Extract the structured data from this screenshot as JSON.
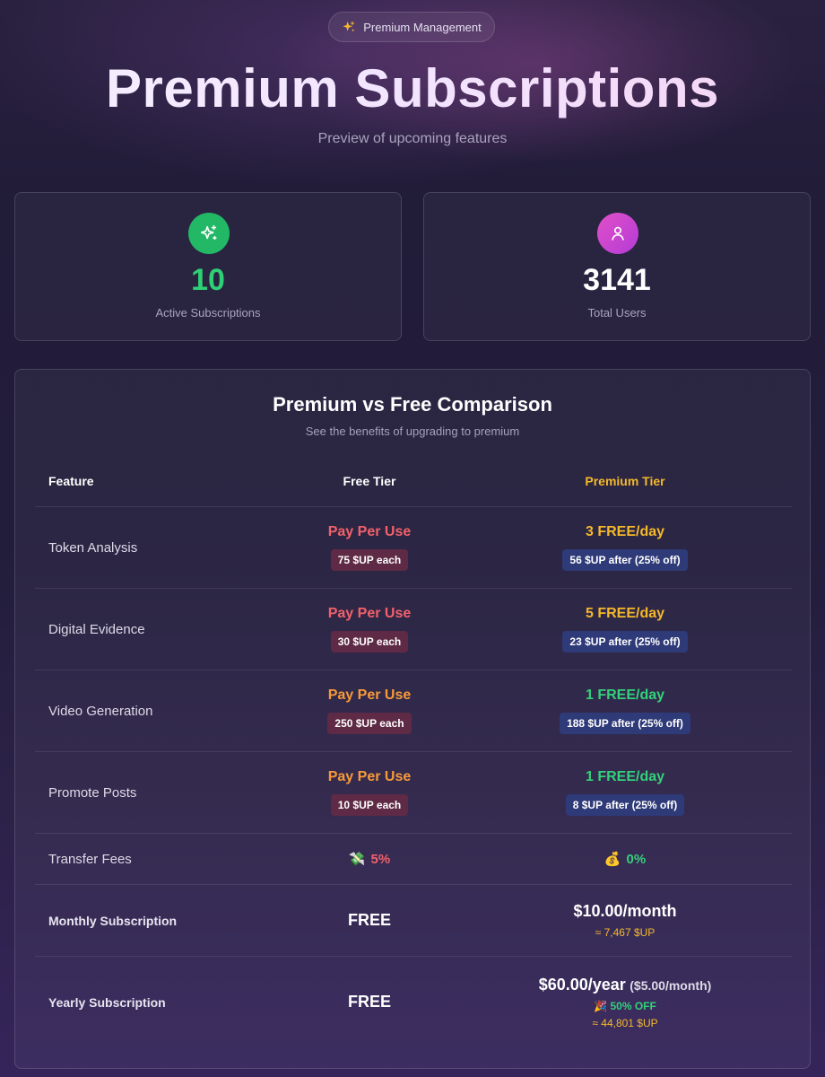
{
  "header": {
    "badge_label": "Premium Management",
    "title": "Premium Subscriptions",
    "subtitle": "Preview of upcoming features"
  },
  "stats": [
    {
      "value": "10",
      "label": "Active Subscriptions",
      "icon": "sparkles-icon",
      "color": "#22b866"
    },
    {
      "value": "3141",
      "label": "Total Users",
      "icon": "user-icon",
      "color": "#d048c8"
    }
  ],
  "comparison": {
    "title": "Premium vs Free Comparison",
    "subtitle": "See the benefits of upgrading to premium",
    "columns": {
      "feature": "Feature",
      "free": "Free Tier",
      "premium": "Premium Tier"
    },
    "rows": [
      {
        "feature": "Token Analysis",
        "free_main": "Pay Per Use",
        "free_price": "75 $UP each",
        "premium_main": "3 FREE/day",
        "premium_price": "56 $UP after (25% off)"
      },
      {
        "feature": "Digital Evidence",
        "free_main": "Pay Per Use",
        "free_price": "30 $UP each",
        "premium_main": "5 FREE/day",
        "premium_price": "23 $UP after (25% off)"
      },
      {
        "feature": "Video Generation",
        "free_main": "Pay Per Use",
        "free_price": "250 $UP each",
        "premium_main": "1 FREE/day",
        "premium_price": "188 $UP after (25% off)"
      },
      {
        "feature": "Promote Posts",
        "free_main": "Pay Per Use",
        "free_price": "10 $UP each",
        "premium_main": "1 FREE/day",
        "premium_price": "8 $UP after (25% off)"
      }
    ],
    "transfer": {
      "feature": "Transfer Fees",
      "free_emoji": "💸",
      "free_value": "5%",
      "premium_emoji": "💰",
      "premium_value": "0%"
    },
    "monthly": {
      "feature": "Monthly Subscription",
      "free": "FREE",
      "price": "$10.00/month",
      "up_price": "≈ 7,467 $UP"
    },
    "yearly": {
      "feature": "Yearly Subscription",
      "free": "FREE",
      "price": "$60.00/year",
      "per_month": "($5.00/month)",
      "discount_emoji": "🎉",
      "discount": "50% OFF",
      "up_price": "≈ 44,801 $UP"
    }
  },
  "colors": {
    "gold": "#f5b82b",
    "red": "#f2616b",
    "orange": "#f79a3a",
    "green": "#33d17a",
    "pill_red": "#5e2a45",
    "pill_blue": "#2f3a78"
  }
}
